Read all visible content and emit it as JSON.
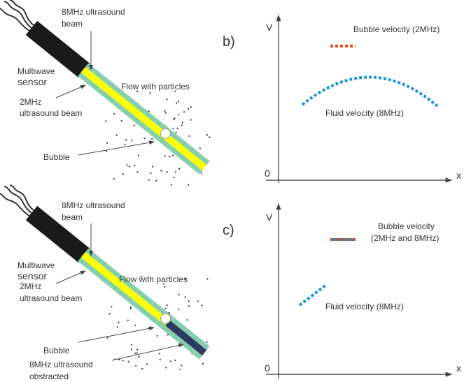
{
  "top": {
    "beam_8mhz": [
      "8MHz ultrasound",
      "beam"
    ],
    "sensor": [
      "Multiwave",
      "sensor"
    ],
    "beam_2mhz": [
      "2MHz",
      "ultrasound beam"
    ],
    "flow": "Flow with particles",
    "bubble": "Bubble"
  },
  "top_plot": {
    "label": "b)",
    "y_axis": "V",
    "origin": "0",
    "x_axis": "x",
    "bubble_velocity": [
      "Bubble velocity (2MHz)"
    ],
    "fluid_velocity": "Fluid velocity (8MHz)"
  },
  "bottom": {
    "beam_8mhz": [
      "8MHz ultrasound",
      "beam"
    ],
    "sensor": [
      "Multiwave",
      "sensor"
    ],
    "beam_2mhz": [
      "2MHz",
      "ultrasound beam"
    ],
    "flow": "Flow with particles",
    "bubble": "Bubble",
    "obstructed": [
      "8MHz ultrasound",
      "obstracted"
    ]
  },
  "bottom_plot": {
    "label": "c)",
    "y_axis": "V",
    "origin": "0",
    "x_axis": "x",
    "bubble_velocity": [
      "Bubble velocity",
      "(2MHz and 8MHz)"
    ],
    "fluid_velocity": "Fluid velocity (8MHz)"
  }
}
